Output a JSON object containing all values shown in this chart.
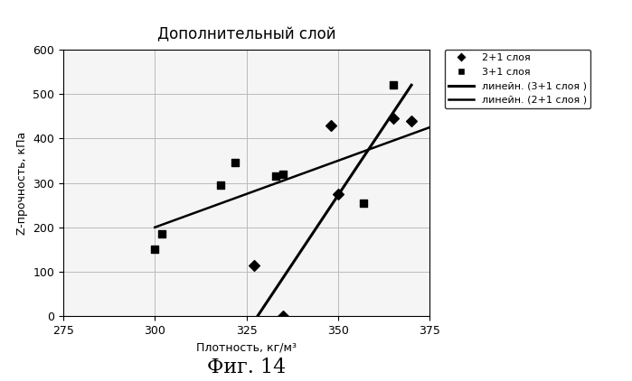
{
  "title": "Дополнительный слой",
  "xlabel": "Плотность, кг/м³",
  "ylabel": "Z-прочность, кПа",
  "fig_label": "Фиг. 14",
  "xlim": [
    275,
    375
  ],
  "ylim": [
    0,
    600
  ],
  "xticks": [
    275,
    300,
    325,
    350,
    375
  ],
  "yticks": [
    0,
    100,
    200,
    300,
    400,
    500,
    600
  ],
  "series_2p1": {
    "x": [
      327,
      335,
      348,
      350,
      365,
      370
    ],
    "y": [
      115,
      0,
      430,
      275,
      445,
      440
    ],
    "marker": "D",
    "color": "#000000",
    "size": 6,
    "label": "2+1 слоя"
  },
  "series_3p1": {
    "x": [
      300,
      302,
      318,
      322,
      333,
      335,
      357,
      365
    ],
    "y": [
      150,
      185,
      295,
      345,
      315,
      320,
      255,
      520
    ],
    "marker": "s",
    "color": "#000000",
    "size": 6,
    "label": "3+1 слоя"
  },
  "line_3p1": {
    "x": [
      328,
      370
    ],
    "y": [
      0,
      520
    ],
    "color": "#000000",
    "linewidth": 2.2,
    "linestyle": "-",
    "label": "линейн. (3+1 слоя )"
  },
  "line_2p1": {
    "x": [
      300,
      375
    ],
    "y": [
      200,
      425
    ],
    "color": "#000000",
    "linewidth": 1.8,
    "linestyle": "-",
    "label": "линейн. (2+1 слоя )"
  },
  "background_color": "#f5f5f5",
  "grid_color": "#bbbbbb"
}
